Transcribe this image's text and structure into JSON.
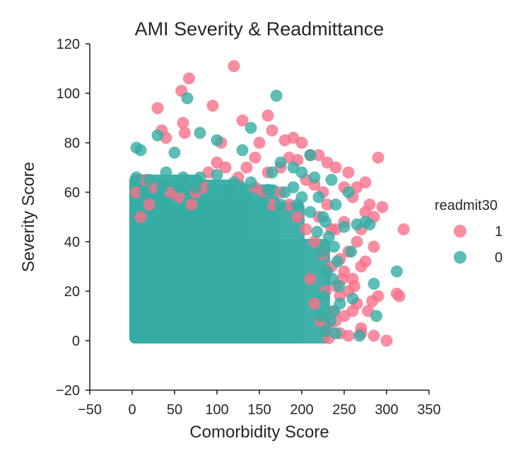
{
  "chart_data": {
    "type": "scatter",
    "title": "AMI Severity & Readmittance",
    "xlabel": "Comorbidity Score",
    "ylabel": "Severity Score",
    "xlim": [
      -50,
      350
    ],
    "ylim": [
      -20,
      120
    ],
    "xticks": [
      -50,
      0,
      50,
      100,
      150,
      200,
      250,
      300,
      350
    ],
    "yticks": [
      -20,
      0,
      20,
      40,
      60,
      80,
      100,
      120
    ],
    "x_tick_labels": [
      "−50",
      "0",
      "50",
      "100",
      "150",
      "200",
      "250",
      "300",
      "350"
    ],
    "y_tick_labels": [
      "−20",
      "0",
      "20",
      "40",
      "60",
      "80",
      "100",
      "120"
    ],
    "grid": false,
    "legend": {
      "title": "readmit30",
      "placement": "right",
      "entries": [
        {
          "label": "1",
          "color": "#f77189"
        },
        {
          "label": "0",
          "color": "#36ada4"
        }
      ]
    },
    "series": [
      {
        "name": "1",
        "color": "#f77189",
        "points": [
          [
            120,
            111
          ],
          [
            67,
            106
          ],
          [
            58,
            101
          ],
          [
            60,
            88
          ],
          [
            30,
            94
          ],
          [
            95,
            95
          ],
          [
            160,
            91
          ],
          [
            130,
            89
          ],
          [
            35,
            85
          ],
          [
            40,
            82
          ],
          [
            62,
            84
          ],
          [
            165,
            85
          ],
          [
            180,
            81
          ],
          [
            190,
            82
          ],
          [
            200,
            80
          ],
          [
            210,
            75
          ],
          [
            220,
            75
          ],
          [
            150,
            80
          ],
          [
            145,
            74
          ],
          [
            105,
            80
          ],
          [
            185,
            74
          ],
          [
            195,
            73
          ],
          [
            230,
            72
          ],
          [
            240,
            70
          ],
          [
            255,
            68
          ],
          [
            175,
            70
          ],
          [
            160,
            68
          ],
          [
            135,
            70
          ],
          [
            125,
            66
          ],
          [
            205,
            65
          ],
          [
            215,
            63
          ],
          [
            250,
            62
          ],
          [
            265,
            62
          ],
          [
            275,
            64
          ],
          [
            290,
            74
          ],
          [
            260,
            58
          ],
          [
            280,
            55
          ],
          [
            295,
            54
          ],
          [
            320,
            45
          ],
          [
            275,
            52
          ],
          [
            285,
            50
          ],
          [
            250,
            48
          ],
          [
            240,
            45
          ],
          [
            270,
            45
          ],
          [
            265,
            40
          ],
          [
            285,
            38
          ],
          [
            255,
            36
          ],
          [
            245,
            33
          ],
          [
            275,
            32
          ],
          [
            270,
            30
          ],
          [
            260,
            25
          ],
          [
            250,
            28
          ],
          [
            240,
            22
          ],
          [
            255,
            20
          ],
          [
            245,
            18
          ],
          [
            265,
            15
          ],
          [
            260,
            12
          ],
          [
            250,
            10
          ],
          [
            240,
            8
          ],
          [
            270,
            5
          ],
          [
            245,
            3
          ],
          [
            255,
            2
          ],
          [
            232,
            1
          ],
          [
            300,
            0
          ],
          [
            285,
            2
          ],
          [
            270,
            3
          ],
          [
            315,
            18
          ],
          [
            312,
            19
          ],
          [
            290,
            18
          ],
          [
            278,
            12
          ],
          [
            283,
            16
          ],
          [
            262,
            22
          ],
          [
            248,
            25
          ],
          [
            235,
            30
          ],
          [
            225,
            35
          ],
          [
            215,
            40
          ],
          [
            205,
            45
          ],
          [
            195,
            50
          ],
          [
            185,
            55
          ],
          [
            175,
            60
          ],
          [
            165,
            55
          ],
          [
            155,
            60
          ],
          [
            145,
            62
          ],
          [
            110,
            70
          ],
          [
            100,
            72
          ],
          [
            90,
            68
          ],
          [
            85,
            62
          ],
          [
            75,
            60
          ],
          [
            70,
            55
          ],
          [
            55,
            58
          ],
          [
            45,
            60
          ],
          [
            25,
            62
          ],
          [
            15,
            65
          ],
          [
            5,
            60
          ],
          [
            20,
            55
          ],
          [
            10,
            50
          ],
          [
            230,
            55
          ],
          [
            225,
            60
          ],
          [
            220,
            50
          ],
          [
            235,
            45
          ],
          [
            228,
            20
          ],
          [
            238,
            12
          ],
          [
            232,
            5
          ],
          [
            222,
            8
          ],
          [
            215,
            15
          ],
          [
            210,
            25
          ]
        ]
      },
      {
        "name": "0",
        "color": "#36ada4",
        "points": [
          [
            170,
            99
          ],
          [
            65,
            98
          ],
          [
            140,
            86
          ],
          [
            80,
            84
          ],
          [
            30,
            83
          ],
          [
            100,
            81
          ],
          [
            5,
            78
          ],
          [
            10,
            77
          ],
          [
            50,
            76
          ],
          [
            130,
            77
          ],
          [
            210,
            75
          ],
          [
            175,
            72
          ],
          [
            190,
            70
          ],
          [
            165,
            68
          ],
          [
            200,
            68
          ],
          [
            215,
            66
          ],
          [
            235,
            65
          ],
          [
            255,
            60
          ],
          [
            275,
            48
          ],
          [
            265,
            47
          ],
          [
            250,
            46
          ],
          [
            280,
            47
          ],
          [
            258,
            36
          ],
          [
            285,
            23
          ],
          [
            312,
            28
          ],
          [
            288,
            10
          ],
          [
            260,
            17
          ],
          [
            245,
            15
          ],
          [
            268,
            2
          ],
          [
            240,
            3
          ],
          [
            5,
            66
          ],
          [
            20,
            65
          ],
          [
            40,
            68
          ],
          [
            60,
            66
          ],
          [
            80,
            66
          ],
          [
            100,
            67
          ],
          [
            120,
            64
          ],
          [
            140,
            64
          ],
          [
            160,
            61
          ],
          [
            180,
            60
          ],
          [
            220,
            58
          ],
          [
            240,
            55
          ],
          [
            228,
            48
          ],
          [
            232,
            42
          ],
          [
            238,
            38
          ],
          [
            242,
            32
          ],
          [
            236,
            25
          ],
          [
            244,
            22
          ],
          [
            238,
            12
          ],
          [
            234,
            8
          ],
          [
            15,
            60
          ],
          [
            35,
            62
          ],
          [
            55,
            62
          ],
          [
            75,
            62
          ],
          [
            95,
            62
          ],
          [
            115,
            60
          ],
          [
            135,
            58
          ],
          [
            155,
            56
          ],
          [
            175,
            55
          ],
          [
            195,
            55
          ],
          [
            210,
            52
          ],
          [
            225,
            50
          ],
          [
            218,
            44
          ],
          [
            224,
            36
          ],
          [
            230,
            28
          ],
          [
            226,
            18
          ],
          [
            222,
            10
          ],
          [
            228,
            4
          ],
          [
            200,
            58
          ],
          [
            190,
            62
          ]
        ]
      }
    ],
    "dense_regions": {
      "0": [
        {
          "xmin": 0,
          "xmax": 230,
          "ymin": 0,
          "ymax": 40
        },
        {
          "xmin": 0,
          "xmax": 200,
          "ymin": 0,
          "ymax": 55
        },
        {
          "xmin": 0,
          "xmax": 170,
          "ymin": 0,
          "ymax": 62
        },
        {
          "xmin": 0,
          "xmax": 130,
          "ymin": 0,
          "ymax": 64
        },
        {
          "xmin": 0,
          "xmax": 80,
          "ymin": 0,
          "ymax": 66
        }
      ]
    }
  }
}
